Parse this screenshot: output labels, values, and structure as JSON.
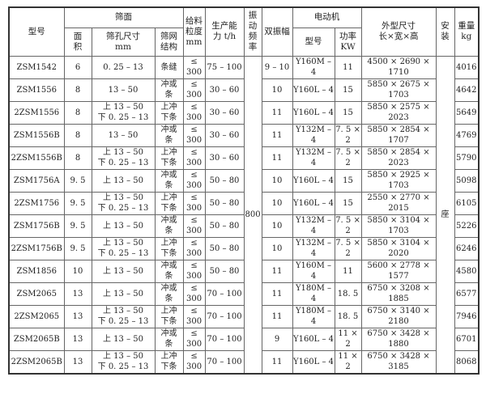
{
  "header": {
    "model": "型号",
    "screen_surface": "筛面",
    "area": [
      "面",
      "积"
    ],
    "aperture": [
      "筛孔尺寸",
      "mm"
    ],
    "mesh_structure": [
      "筛网",
      "结构"
    ],
    "feed_size": [
      "给料",
      "粒度",
      "mm"
    ],
    "capacity": [
      "生产能",
      "力  t/h"
    ],
    "vib_freq": [
      "振",
      "动",
      "频",
      "率"
    ],
    "amplitude": "双振幅",
    "motor": "电动机",
    "motor_model": "型号",
    "motor_power": [
      "功率",
      "KW"
    ],
    "dimensions": [
      "外型尺寸",
      "长×宽×高"
    ],
    "install": [
      "安",
      "装"
    ],
    "weight": [
      "重量",
      "kg"
    ]
  },
  "merged": {
    "vib_freq": "800",
    "install": "座"
  },
  "rows": [
    {
      "model": "ZSM1542",
      "area": "6",
      "aperture": [
        "0. 25 – 13"
      ],
      "mesh": [
        "条缝"
      ],
      "feed": [
        "≤",
        "300"
      ],
      "cap": "75 – 100",
      "amp": "9 – 10",
      "mm": "Y160M – 4",
      "pw": "11",
      "dim": "4500 × 2690 × 1710",
      "wt": "4016"
    },
    {
      "model": "ZSM1556",
      "area": "8",
      "aperture": [
        "13 – 50"
      ],
      "mesh": [
        "冲或",
        "条"
      ],
      "feed": [
        "≤",
        "300"
      ],
      "cap": "30 – 60",
      "amp": "10",
      "mm": "Y160L – 4",
      "pw": "15",
      "dim": "5850 × 2675 × 1703",
      "wt": "4642"
    },
    {
      "model": "2ZSM1556",
      "area": "8",
      "aperture": [
        "上 13 – 50",
        "下 0. 25 – 13"
      ],
      "mesh": [
        "上冲",
        "下条"
      ],
      "feed": [
        "≤",
        "300"
      ],
      "cap": "30 – 60",
      "amp": "11",
      "mm": "Y160L – 4",
      "pw": "15",
      "dim": "5850 × 2575 × 2023",
      "wt": "5649"
    },
    {
      "model": "ZSM1556B",
      "area": "8",
      "aperture": [
        "13 – 50"
      ],
      "mesh": [
        "冲或",
        "条"
      ],
      "feed": [
        "≤",
        "300"
      ],
      "cap": "30 – 60",
      "amp": "11",
      "mm": "Y132M – 4",
      "pw": "7. 5 × 2",
      "dim": "5850 × 2854 × 1707",
      "wt": "4769"
    },
    {
      "model": "2ZSM1556B",
      "area": "8",
      "aperture": [
        "上 13 – 50",
        "下 0. 25 – 13"
      ],
      "mesh": [
        "上冲",
        "下条"
      ],
      "feed": [
        "≤",
        "300"
      ],
      "cap": "30 – 60",
      "amp": "11",
      "mm": "Y132M – 4",
      "pw": "7. 5 × 2",
      "dim": "5850 × 2854 × 2023",
      "wt": "5790"
    },
    {
      "model": "ZSM1756A",
      "area": "9. 5",
      "aperture": [
        "上 13 – 50"
      ],
      "mesh": [
        "冲或",
        "条"
      ],
      "feed": [
        "≤",
        "300"
      ],
      "cap": "50 – 80",
      "amp": "10",
      "mm": "Y160L – 4",
      "pw": "15",
      "dim": "5850 × 2925 × 1703",
      "wt": "5098"
    },
    {
      "model": "2ZSM1756",
      "area": "9. 5",
      "aperture": [
        "上 13 – 50",
        "下 0. 25 – 13"
      ],
      "mesh": [
        "上冲",
        "下条"
      ],
      "feed": [
        "≤",
        "300"
      ],
      "cap": "50 – 80",
      "amp": "10",
      "mm": "Y160L – 4",
      "pw": "15",
      "dim": "2550 × 2770 × 2015",
      "wt": "6105"
    },
    {
      "model": "ZSM1756B",
      "area": "9. 5",
      "aperture": [
        "上 13 – 50"
      ],
      "mesh": [
        "冲或",
        "条"
      ],
      "feed": [
        "≤",
        "300"
      ],
      "cap": "50 – 80",
      "amp": "10",
      "mm": "Y132M – 4",
      "pw": "7. 5 × 2",
      "dim": "5850 × 3104 × 1703",
      "wt": "5226"
    },
    {
      "model": "2ZSM1756B",
      "area": "9. 5",
      "aperture": [
        "上 13 – 50",
        "下 0. 25 – 13"
      ],
      "mesh": [
        "上冲",
        "下条"
      ],
      "feed": [
        "≤",
        "300"
      ],
      "cap": "50 – 80",
      "amp": "10",
      "mm": "Y132M – 4",
      "pw": "7. 5 × 2",
      "dim": "5850 × 3104 × 2020",
      "wt": "6246"
    },
    {
      "model": "ZSM1856",
      "area": "10",
      "aperture": [
        "上 13 – 50"
      ],
      "mesh": [
        "冲或",
        "条"
      ],
      "feed": [
        "≤",
        "300"
      ],
      "cap": "50 – 80",
      "amp": "11",
      "mm": "Y160M – 4",
      "pw": "11",
      "dim": "5600 × 2778 × 1577",
      "wt": "4580"
    },
    {
      "model": "ZSM2065",
      "area": "13",
      "aperture": [
        "上 13 – 50"
      ],
      "mesh": [
        "冲或",
        "条"
      ],
      "feed": [
        "≤",
        "300"
      ],
      "cap": "70 – 100",
      "amp": "11",
      "mm": "Y180M – 4",
      "pw": "18. 5",
      "dim": "6750 × 3208 × 1885",
      "wt": "6577"
    },
    {
      "model": "2ZSM2065",
      "area": "13",
      "aperture": [
        "上 13 – 50",
        "下 0. 25 – 13"
      ],
      "mesh": [
        "上冲",
        "下条"
      ],
      "feed": [
        "≤",
        "300"
      ],
      "cap": "70 – 100",
      "amp": "11",
      "mm": "Y180M – 4",
      "pw": "18. 5",
      "dim": "6750 × 3140 × 2180",
      "wt": "7946"
    },
    {
      "model": "ZSM2065B",
      "area": "13",
      "aperture": [
        "上 13 – 50"
      ],
      "mesh": [
        "冲或",
        "条"
      ],
      "feed": [
        "≤",
        "300"
      ],
      "cap": "70 – 100",
      "amp": "9",
      "mm": "Y160L – 4",
      "pw": "11 × 2",
      "dim": "6750 × 3428 × 1880",
      "wt": "6701"
    },
    {
      "model": "2ZSM2065B",
      "area": "13",
      "aperture": [
        "上 13 – 50",
        "下 0. 25 – 13"
      ],
      "mesh": [
        "上冲",
        "下条"
      ],
      "feed": [
        "≤",
        "300"
      ],
      "cap": "70 – 100",
      "amp": "11",
      "mm": "Y160L – 4",
      "pw": "11 × 2",
      "dim": "6750 × 3428 × 3185",
      "wt": "8068"
    }
  ]
}
